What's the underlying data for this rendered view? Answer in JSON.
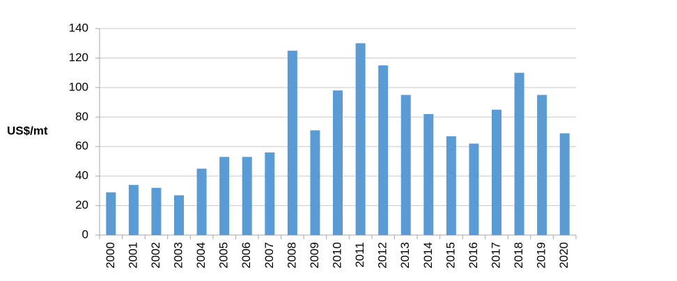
{
  "chart_data": {
    "type": "bar",
    "y_label": "US$/mt",
    "categories": [
      "2000",
      "2001",
      "2002",
      "2003",
      "2004",
      "2005",
      "2006",
      "2007",
      "2008",
      "2009",
      "2010",
      "2011",
      "2012",
      "2013",
      "2014",
      "2015",
      "2016",
      "2017",
      "2018",
      "2019",
      "2020"
    ],
    "values": [
      29,
      34,
      32,
      27,
      45,
      53,
      53,
      56,
      125,
      71,
      98,
      130,
      115,
      95,
      82,
      67,
      62,
      85,
      110,
      95,
      69
    ],
    "color": "#5b9bd5",
    "ylim": [
      0,
      140
    ],
    "yticks": [
      0,
      20,
      40,
      60,
      80,
      100,
      120,
      140
    ],
    "grid": true
  }
}
